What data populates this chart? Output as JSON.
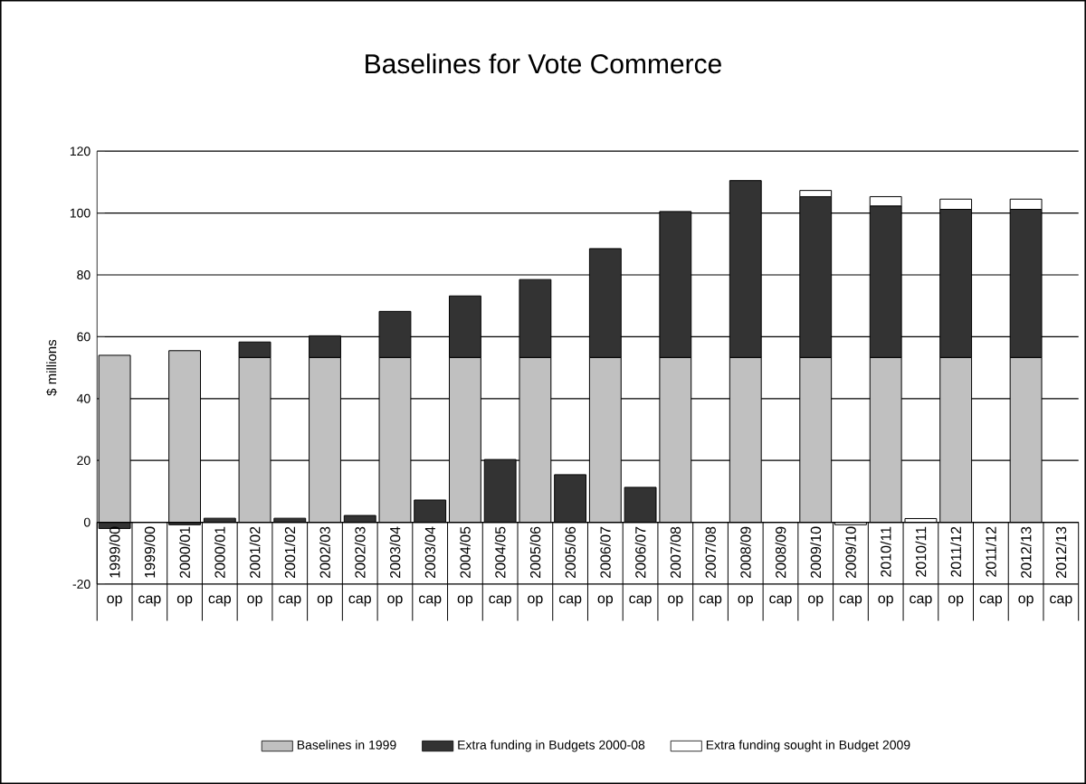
{
  "chart_data": {
    "type": "bar",
    "stacked": true,
    "title": "Baselines for Vote Commerce",
    "ylabel": "$ millions",
    "categories": [
      "1999/00",
      "1999/00",
      "2000/01",
      "2000/01",
      "2001/02",
      "2001/02",
      "2002/03",
      "2002/03",
      "2003/04",
      "2003/04",
      "2004/05",
      "2004/05",
      "2005/06",
      "2005/06",
      "2006/07",
      "2006/07",
      "2007/08",
      "2007/08",
      "2008/09",
      "2008/09",
      "2009/10",
      "2009/10",
      "2010/11",
      "2010/11",
      "2011/12",
      "2011/12",
      "2012/13",
      "2012/13"
    ],
    "annotations": [
      "op",
      "cap",
      "op",
      "cap",
      "op",
      "cap",
      "op",
      "cap",
      "op",
      "cap",
      "op",
      "cap",
      "op",
      "cap",
      "op",
      "cap",
      "op",
      "cap",
      "op",
      "cap",
      "op",
      "cap",
      "op",
      "cap",
      "op",
      "cap",
      "op",
      "cap"
    ],
    "series": [
      {
        "name": "Baselines in 1999",
        "color": "#c0c0c0",
        "values": [
          54,
          null,
          55.5,
          null,
          53.3,
          null,
          53.3,
          null,
          53.3,
          null,
          53.3,
          null,
          53.3,
          null,
          53.3,
          null,
          53.3,
          null,
          53.3,
          null,
          53.3,
          null,
          53.3,
          null,
          53.3,
          null,
          53.3,
          null
        ]
      },
      {
        "name": "Extra funding in Budgets 2000-08",
        "color": "#333333",
        "values": [
          -2,
          null,
          -0.8,
          1.3,
          5,
          1.3,
          7,
          2.2,
          14.9,
          7.2,
          19.9,
          20.3,
          25.2,
          15.4,
          35.2,
          11.3,
          47.2,
          null,
          57.2,
          null,
          52,
          null,
          49,
          null,
          47.9,
          null,
          47.9,
          null
        ]
      },
      {
        "name": "Extra funding sought in Budget 2009",
        "color": "#ffffff",
        "values": [
          null,
          null,
          null,
          null,
          null,
          null,
          null,
          null,
          null,
          null,
          null,
          null,
          null,
          null,
          null,
          null,
          null,
          null,
          null,
          null,
          2,
          -0.8,
          3,
          1.2,
          3.3,
          null,
          3.3,
          null
        ]
      }
    ],
    "ylim": [
      -20,
      120
    ],
    "yticks": [
      -20,
      0,
      20,
      40,
      60,
      80,
      100,
      120
    ],
    "grid": "y",
    "legend": "bottom"
  }
}
